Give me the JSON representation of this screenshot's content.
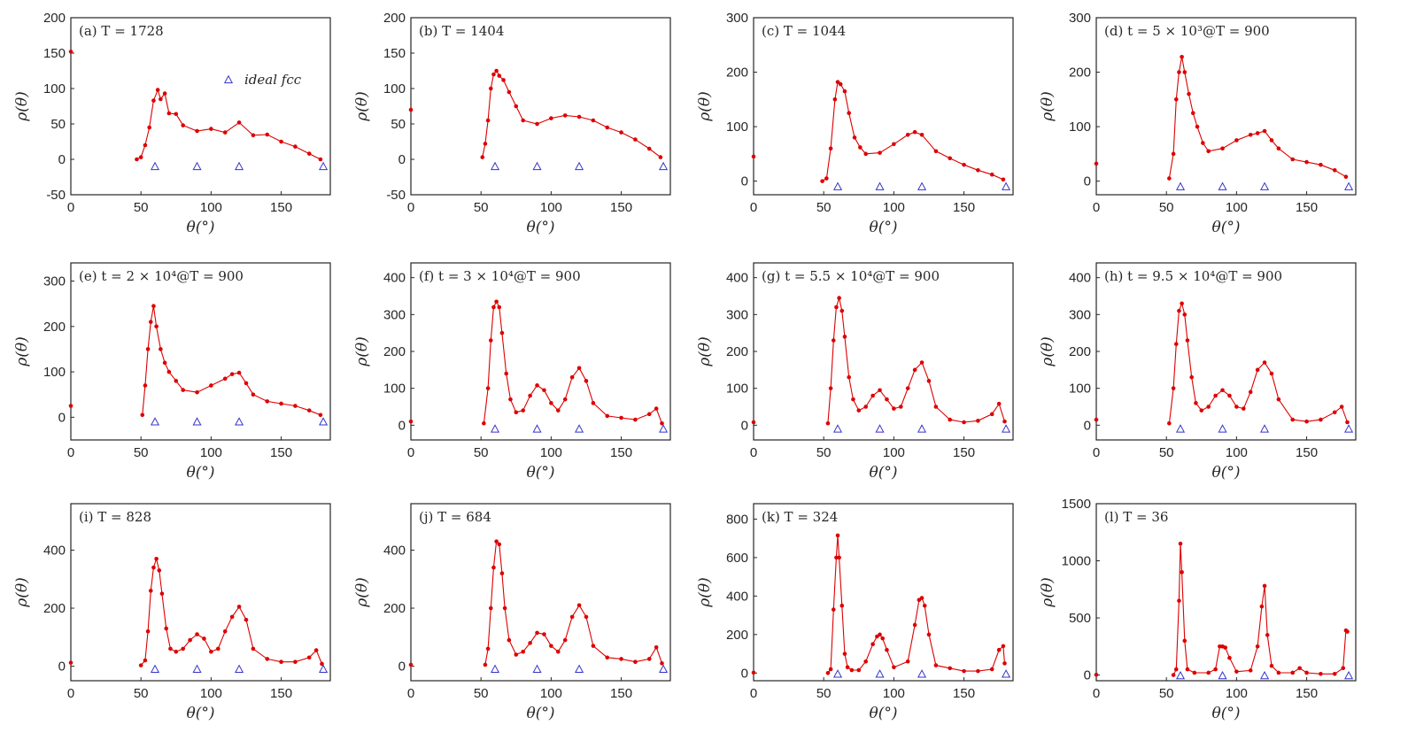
{
  "figure": {
    "legend": {
      "marker": "triangle",
      "label": "ideal fcc",
      "color": "#3333cc"
    },
    "series_color": "#dd0000",
    "ideal_color": "#3333cc"
  },
  "chart_data": [
    {
      "type": "line",
      "title": "(a) T = 1728",
      "xlabel": "θ(°)",
      "ylabel": "ρ(θ)",
      "xlim": [
        0,
        185
      ],
      "ylim": [
        -50,
        200
      ],
      "xticks": [
        0,
        50,
        100,
        150
      ],
      "yticks": [
        -50,
        0,
        50,
        100,
        150,
        200
      ],
      "origin_value": 152,
      "ideal_fcc": {
        "x": [
          60,
          90,
          120,
          180
        ],
        "y": -10
      },
      "series": [
        {
          "name": "rho",
          "x": [
            47,
            50,
            53,
            56,
            59,
            62,
            64,
            67,
            70,
            75,
            80,
            90,
            100,
            110,
            120,
            130,
            140,
            150,
            160,
            170,
            178
          ],
          "y": [
            0,
            3,
            20,
            45,
            83,
            98,
            85,
            93,
            65,
            64,
            48,
            40,
            43,
            38,
            52,
            34,
            35,
            25,
            18,
            8,
            0
          ]
        }
      ]
    },
    {
      "type": "line",
      "title": "(b) T = 1404",
      "xlabel": "θ(°)",
      "ylabel": "ρ(θ)",
      "xlim": [
        0,
        185
      ],
      "ylim": [
        -50,
        200
      ],
      "xticks": [
        0,
        50,
        100,
        150
      ],
      "yticks": [
        -50,
        0,
        50,
        100,
        150,
        200
      ],
      "origin_value": 70,
      "ideal_fcc": {
        "x": [
          60,
          90,
          120,
          180
        ],
        "y": -10
      },
      "series": [
        {
          "name": "rho",
          "x": [
            51,
            53,
            55,
            57,
            59,
            61,
            63,
            66,
            70,
            75,
            80,
            90,
            100,
            110,
            120,
            130,
            140,
            150,
            160,
            170,
            178
          ],
          "y": [
            3,
            22,
            55,
            100,
            120,
            125,
            118,
            112,
            95,
            75,
            55,
            50,
            58,
            62,
            60,
            55,
            45,
            38,
            28,
            15,
            3
          ]
        }
      ]
    },
    {
      "type": "line",
      "title": "(c) T = 1044",
      "xlabel": "θ(°)",
      "ylabel": "ρ(θ)",
      "xlim": [
        0,
        185
      ],
      "ylim": [
        -25,
        300
      ],
      "xticks": [
        0,
        50,
        100,
        150
      ],
      "yticks": [
        0,
        100,
        200,
        300
      ],
      "origin_value": 45,
      "ideal_fcc": {
        "x": [
          60,
          90,
          120,
          180
        ],
        "y": -10
      },
      "series": [
        {
          "name": "rho",
          "x": [
            49,
            52,
            55,
            58,
            60,
            62,
            65,
            68,
            72,
            76,
            80,
            90,
            100,
            110,
            115,
            120,
            130,
            140,
            150,
            160,
            170,
            178
          ],
          "y": [
            0,
            5,
            60,
            150,
            182,
            178,
            165,
            125,
            80,
            62,
            50,
            52,
            68,
            85,
            90,
            85,
            55,
            42,
            30,
            20,
            12,
            3
          ]
        }
      ]
    },
    {
      "type": "line",
      "title": "(d) t = 5 × 10³@T = 900",
      "xlabel": "θ(°)",
      "ylabel": "ρ(θ)",
      "xlim": [
        0,
        185
      ],
      "ylim": [
        -25,
        300
      ],
      "xticks": [
        0,
        50,
        100,
        150
      ],
      "yticks": [
        0,
        100,
        200,
        300
      ],
      "origin_value": 32,
      "ideal_fcc": {
        "x": [
          60,
          90,
          120,
          180
        ],
        "y": -10
      },
      "series": [
        {
          "name": "rho",
          "x": [
            52,
            55,
            57,
            59,
            61,
            63,
            66,
            69,
            72,
            76,
            80,
            90,
            100,
            110,
            115,
            120,
            125,
            130,
            140,
            150,
            160,
            170,
            178
          ],
          "y": [
            5,
            50,
            150,
            200,
            228,
            200,
            160,
            125,
            100,
            70,
            55,
            60,
            75,
            85,
            88,
            92,
            75,
            60,
            40,
            35,
            30,
            20,
            8
          ]
        }
      ]
    },
    {
      "type": "line",
      "title": "(e) t = 2 × 10⁴@T = 900",
      "xlabel": "θ(°)",
      "ylabel": "ρ(θ)",
      "xlim": [
        0,
        185
      ],
      "ylim": [
        -50,
        340
      ],
      "xticks": [
        0,
        50,
        100,
        150
      ],
      "yticks": [
        0,
        100,
        200,
        300
      ],
      "origin_value": 25,
      "ideal_fcc": {
        "x": [
          60,
          90,
          120,
          180
        ],
        "y": -10
      },
      "series": [
        {
          "name": "rho",
          "x": [
            51,
            53,
            55,
            57,
            59,
            61,
            64,
            67,
            70,
            75,
            80,
            90,
            100,
            110,
            115,
            120,
            125,
            130,
            140,
            150,
            160,
            170,
            178
          ],
          "y": [
            5,
            70,
            150,
            210,
            245,
            200,
            150,
            120,
            100,
            80,
            60,
            55,
            70,
            85,
            95,
            98,
            75,
            50,
            35,
            30,
            25,
            15,
            5
          ]
        }
      ]
    },
    {
      "type": "line",
      "title": "(f) t = 3 × 10⁴@T = 900",
      "xlabel": "θ(°)",
      "ylabel": "ρ(θ)",
      "xlim": [
        0,
        185
      ],
      "ylim": [
        -40,
        440
      ],
      "xticks": [
        0,
        50,
        100,
        150
      ],
      "yticks": [
        0,
        100,
        200,
        300,
        400
      ],
      "origin_value": 10,
      "ideal_fcc": {
        "x": [
          60,
          90,
          120,
          180
        ],
        "y": -10
      },
      "series": [
        {
          "name": "rho",
          "x": [
            52,
            55,
            57,
            59,
            61,
            63,
            65,
            68,
            71,
            75,
            80,
            85,
            90,
            95,
            100,
            105,
            110,
            115,
            120,
            125,
            130,
            140,
            150,
            160,
            170,
            175,
            179
          ],
          "y": [
            5,
            100,
            230,
            320,
            335,
            320,
            250,
            140,
            70,
            35,
            40,
            80,
            108,
            95,
            60,
            40,
            70,
            130,
            155,
            120,
            60,
            25,
            20,
            15,
            30,
            45,
            5
          ]
        }
      ]
    },
    {
      "type": "line",
      "title": "(g) t = 5.5 × 10⁴@T = 900",
      "xlabel": "θ(°)",
      "ylabel": "ρ(θ)",
      "xlim": [
        0,
        185
      ],
      "ylim": [
        -40,
        440
      ],
      "xticks": [
        0,
        50,
        100,
        150
      ],
      "yticks": [
        0,
        100,
        200,
        300,
        400
      ],
      "origin_value": 8,
      "ideal_fcc": {
        "x": [
          60,
          90,
          120,
          180
        ],
        "y": -10
      },
      "series": [
        {
          "name": "rho",
          "x": [
            53,
            55,
            57,
            59,
            61,
            63,
            65,
            68,
            71,
            75,
            80,
            85,
            90,
            95,
            100,
            105,
            110,
            115,
            120,
            125,
            130,
            140,
            150,
            160,
            170,
            175,
            179
          ],
          "y": [
            5,
            100,
            230,
            320,
            345,
            310,
            240,
            130,
            70,
            40,
            50,
            80,
            95,
            70,
            45,
            50,
            100,
            150,
            170,
            120,
            50,
            15,
            8,
            12,
            30,
            58,
            10
          ]
        }
      ]
    },
    {
      "type": "line",
      "title": "(h) t = 9.5 × 10⁴@T = 900",
      "xlabel": "θ(°)",
      "ylabel": "ρ(θ)",
      "xlim": [
        0,
        185
      ],
      "ylim": [
        -40,
        440
      ],
      "xticks": [
        0,
        50,
        100,
        150
      ],
      "yticks": [
        0,
        100,
        200,
        300,
        400
      ],
      "origin_value": 15,
      "ideal_fcc": {
        "x": [
          60,
          90,
          120,
          180
        ],
        "y": -10
      },
      "series": [
        {
          "name": "rho",
          "x": [
            52,
            55,
            57,
            59,
            61,
            63,
            65,
            68,
            71,
            75,
            80,
            85,
            90,
            95,
            100,
            105,
            110,
            115,
            120,
            125,
            130,
            140,
            150,
            160,
            170,
            175,
            179
          ],
          "y": [
            5,
            100,
            220,
            310,
            330,
            300,
            230,
            130,
            60,
            40,
            50,
            80,
            95,
            80,
            50,
            45,
            90,
            150,
            170,
            140,
            70,
            15,
            10,
            15,
            35,
            50,
            8
          ]
        }
      ]
    },
    {
      "type": "line",
      "title": "(i) T = 828",
      "xlabel": "θ(°)",
      "ylabel": "ρ(θ)",
      "xlim": [
        0,
        185
      ],
      "ylim": [
        -50,
        560
      ],
      "xticks": [
        0,
        50,
        100,
        150
      ],
      "yticks": [
        0,
        200,
        400
      ],
      "origin_value": 12,
      "ideal_fcc": {
        "x": [
          60,
          90,
          120,
          180
        ],
        "y": -10
      },
      "series": [
        {
          "name": "rho",
          "x": [
            50,
            53,
            55,
            57,
            59,
            61,
            63,
            65,
            68,
            71,
            75,
            80,
            85,
            90,
            95,
            100,
            105,
            110,
            115,
            120,
            125,
            130,
            140,
            150,
            160,
            170,
            175,
            179
          ],
          "y": [
            3,
            20,
            120,
            260,
            340,
            370,
            330,
            250,
            130,
            60,
            50,
            60,
            90,
            110,
            95,
            50,
            60,
            120,
            170,
            205,
            160,
            60,
            25,
            15,
            15,
            30,
            55,
            8
          ]
        }
      ]
    },
    {
      "type": "line",
      "title": "(j) T = 684",
      "xlabel": "θ(°)",
      "ylabel": "ρ(θ)",
      "xlim": [
        0,
        185
      ],
      "ylim": [
        -50,
        560
      ],
      "xticks": [
        0,
        50,
        100,
        150
      ],
      "yticks": [
        0,
        200,
        400
      ],
      "origin_value": 5,
      "ideal_fcc": {
        "x": [
          60,
          90,
          120,
          180
        ],
        "y": -10
      },
      "series": [
        {
          "name": "rho",
          "x": [
            53,
            55,
            57,
            59,
            61,
            63,
            65,
            67,
            70,
            75,
            80,
            85,
            90,
            95,
            100,
            105,
            110,
            115,
            120,
            125,
            130,
            140,
            150,
            160,
            170,
            175,
            179
          ],
          "y": [
            5,
            60,
            200,
            340,
            430,
            420,
            320,
            200,
            90,
            40,
            50,
            80,
            115,
            110,
            70,
            50,
            90,
            170,
            210,
            170,
            70,
            30,
            25,
            15,
            25,
            65,
            10
          ]
        }
      ]
    },
    {
      "type": "line",
      "title": "(k) T = 324",
      "xlabel": "θ(°)",
      "ylabel": "ρ(θ)",
      "xlim": [
        0,
        185
      ],
      "ylim": [
        -40,
        880
      ],
      "xticks": [
        0,
        50,
        100,
        150
      ],
      "yticks": [
        0,
        200,
        400,
        600,
        800
      ],
      "origin_value": 2,
      "ideal_fcc": {
        "x": [
          60,
          90,
          120,
          180
        ],
        "y": -5
      },
      "series": [
        {
          "name": "rho",
          "x": [
            53,
            55,
            57,
            59,
            60,
            61,
            63,
            65,
            67,
            70,
            75,
            80,
            85,
            88,
            90,
            92,
            95,
            100,
            110,
            115,
            118,
            120,
            122,
            125,
            130,
            140,
            150,
            160,
            170,
            175,
            178,
            179
          ],
          "y": [
            0,
            20,
            330,
            600,
            715,
            600,
            350,
            100,
            30,
            15,
            15,
            60,
            150,
            190,
            200,
            180,
            120,
            30,
            60,
            250,
            380,
            390,
            350,
            200,
            40,
            25,
            10,
            10,
            20,
            120,
            140,
            50
          ]
        }
      ]
    },
    {
      "type": "line",
      "title": "(l) T = 36",
      "xlabel": "θ(°)",
      "ylabel": "ρ(θ)",
      "xlim": [
        0,
        185
      ],
      "ylim": [
        -50,
        1500
      ],
      "xticks": [
        0,
        50,
        100,
        150
      ],
      "yticks": [
        0,
        500,
        1000,
        1500
      ],
      "origin_value": 2,
      "ideal_fcc": {
        "x": [
          60,
          90,
          120,
          180
        ],
        "y": -5
      },
      "series": [
        {
          "name": "rho",
          "x": [
            55,
            57,
            59,
            60,
            61,
            63,
            65,
            70,
            80,
            85,
            88,
            90,
            92,
            95,
            100,
            110,
            115,
            118,
            120,
            122,
            125,
            130,
            140,
            145,
            150,
            160,
            170,
            176,
            178,
            179
          ],
          "y": [
            0,
            50,
            650,
            1150,
            900,
            300,
            50,
            20,
            20,
            50,
            250,
            250,
            240,
            150,
            30,
            40,
            250,
            600,
            780,
            350,
            80,
            20,
            20,
            60,
            20,
            10,
            10,
            60,
            390,
            380
          ]
        }
      ]
    }
  ]
}
